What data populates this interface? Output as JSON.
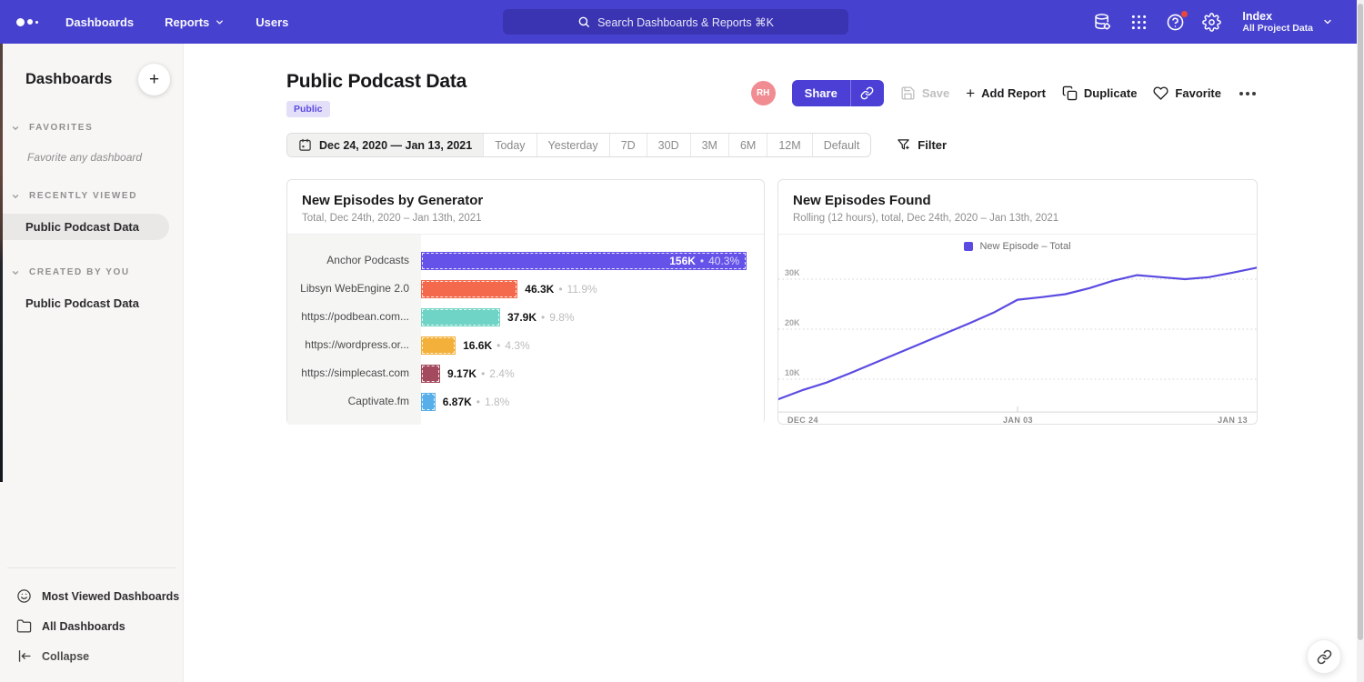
{
  "navbar": {
    "items": [
      "Dashboards",
      "Reports",
      "Users"
    ],
    "search_placeholder": "Search Dashboards & Reports ⌘K",
    "icons": [
      "database-icon",
      "apps-grid-icon",
      "help-icon",
      "settings-icon"
    ],
    "project": {
      "name": "Index",
      "scope": "All Project Data"
    },
    "colors": {
      "bar": "#4741cf",
      "search": "#3a34b3"
    }
  },
  "sidebar": {
    "title": "Dashboards",
    "add_label": "+",
    "sections": [
      {
        "label": "FAVORITES",
        "empty_text": "Favorite any dashboard"
      },
      {
        "label": "RECENTLY VIEWED",
        "item": "Public Podcast Data"
      },
      {
        "label": "CREATED BY YOU",
        "item": "Public Podcast Data"
      }
    ],
    "footer": [
      {
        "label": "Most Viewed Dashboards",
        "icon": "smile-icon"
      },
      {
        "label": "All Dashboards",
        "icon": "folder-icon"
      },
      {
        "label": "Collapse",
        "icon": "collapse-icon"
      }
    ]
  },
  "header": {
    "title": "Public Podcast Data",
    "badge": "Public",
    "avatar": "RH",
    "share_label": "Share",
    "save_label": "Save",
    "add_report_label": "Add Report",
    "add_report_plus": "+",
    "duplicate_label": "Duplicate",
    "favorite_label": "Favorite"
  },
  "toolbar": {
    "date_range": "Dec 24, 2020 — Jan 13, 2021",
    "presets": [
      "Today",
      "Yesterday",
      "7D",
      "30D",
      "3M",
      "6M",
      "12M",
      "Default"
    ],
    "filter_label": "Filter"
  },
  "chart_data": [
    {
      "type": "bar",
      "orientation": "horizontal",
      "title": "New Episodes by Generator",
      "subtitle": "Total, Dec 24th, 2020 – Jan 13th, 2021",
      "categories": [
        "Anchor Podcasts",
        "Libsyn WebEngine 2.0",
        "https://podbean.com...",
        "https://wordpress.or...",
        "https://simplecast.com",
        "Captivate.fm"
      ],
      "values": [
        156000,
        46300,
        37900,
        16600,
        9170,
        6870
      ],
      "value_labels": [
        "156K",
        "46.3K",
        "37.9K",
        "16.6K",
        "9.17K",
        "6.87K"
      ],
      "percent_labels": [
        "40.3%",
        "11.9%",
        "9.8%",
        "4.3%",
        "2.4%",
        "1.8%"
      ],
      "colors": [
        "#6552e8",
        "#f4694b",
        "#6fd3c5",
        "#f3b03a",
        "#a34a5e",
        "#57aee8"
      ],
      "max_value": 156000
    },
    {
      "type": "line",
      "title": "New Episodes Found",
      "subtitle": "Rolling (12 hours), total, Dec 24th, 2020 – Jan 13th, 2021",
      "legend": [
        {
          "label": "New Episode – Total",
          "color": "#5b4be1"
        }
      ],
      "x_ticks": [
        "DEC 24",
        "JAN 03",
        "JAN 13"
      ],
      "y_ticks": [
        "10K",
        "20K",
        "30K"
      ],
      "grid": "dotted horizontal",
      "ylim_k": [
        3.4,
        33.8
      ],
      "x_range": [
        "Dec 24",
        "Jan 13"
      ],
      "values_k": [
        6.0,
        7.8,
        9.3,
        11.2,
        13.2,
        15.2,
        17.2,
        19.2,
        21.2,
        23.3,
        25.9,
        26.4,
        27.0,
        28.2,
        29.7,
        30.8,
        30.4,
        30.0,
        30.4,
        31.3,
        32.3
      ]
    }
  ]
}
